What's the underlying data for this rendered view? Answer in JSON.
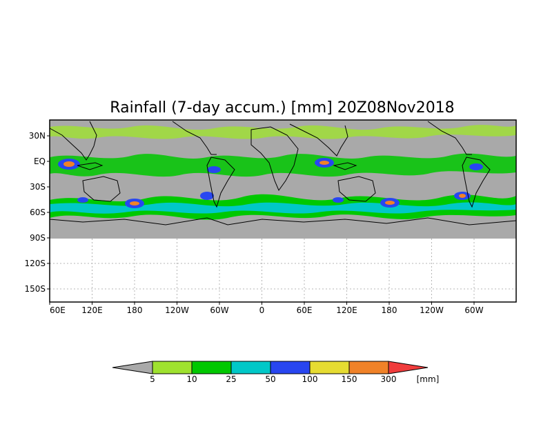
{
  "title": "Rainfall (7-day accum.) [mm] 20Z08Nov2018",
  "lat_labels": [
    "30N",
    "EQ",
    "30S",
    "60S",
    "90S",
    "120S",
    "150S"
  ],
  "lon_labels": [
    "60E",
    "120E",
    "180",
    "120W",
    "60W",
    "0",
    "60E",
    "120E",
    "180",
    "120W",
    "60W"
  ],
  "colorbar": {
    "unit": "[mm]",
    "thresholds": [
      "5",
      "10",
      "25",
      "50",
      "100",
      "150",
      "300"
    ],
    "colors": {
      "below": "#a9a9a9",
      "5-10": "#9fe22f",
      "10-25": "#00c800",
      "25-50": "#00c8c8",
      "50-100": "#2846f0",
      "100-150": "#e6dc32",
      "150-300": "#f08228",
      "above": "#f03c3c"
    }
  },
  "map_colors": {
    "no_rain_land_sea": "#a9a9a9",
    "outside_data": "#ffffff",
    "coastline": "#000000",
    "grid": "#b4b4b4"
  }
}
